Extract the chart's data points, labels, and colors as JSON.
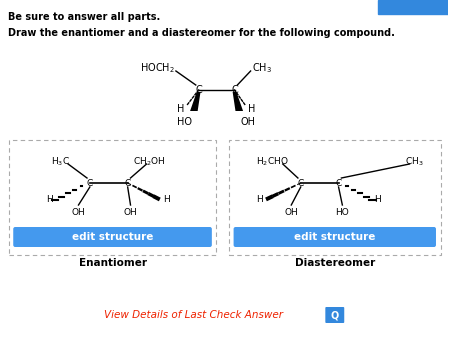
{
  "title_line1": "Be sure to answer all parts.",
  "title_line2": "Draw the enantiomer and a diastereomer for the following compound.",
  "bg_color": "#ffffff",
  "blue_btn_color": "#4499ee",
  "blue_btn_text": "edit structure",
  "blue_btn_text_color": "#ffffff",
  "label_enantiomer": "Enantiomer",
  "label_diastereomer": "Diastereomer",
  "bottom_link": "View Details of Last Check Answer",
  "bottom_link_color": "#ee2200",
  "dash_border_color": "#aaaaaa"
}
